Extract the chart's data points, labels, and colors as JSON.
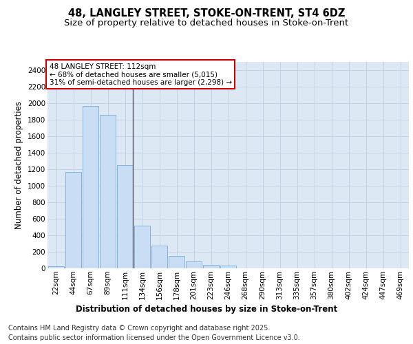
{
  "title_line1": "48, LANGLEY STREET, STOKE-ON-TRENT, ST4 6DZ",
  "title_line2": "Size of property relative to detached houses in Stoke-on-Trent",
  "xlabel": "Distribution of detached houses by size in Stoke-on-Trent",
  "ylabel": "Number of detached properties",
  "categories": [
    "22sqm",
    "44sqm",
    "67sqm",
    "89sqm",
    "111sqm",
    "134sqm",
    "156sqm",
    "178sqm",
    "201sqm",
    "223sqm",
    "246sqm",
    "268sqm",
    "290sqm",
    "313sqm",
    "335sqm",
    "357sqm",
    "380sqm",
    "402sqm",
    "424sqm",
    "447sqm",
    "469sqm"
  ],
  "values": [
    25,
    1170,
    1970,
    1860,
    1250,
    520,
    275,
    150,
    85,
    40,
    35,
    0,
    0,
    0,
    0,
    0,
    0,
    0,
    0,
    0,
    0
  ],
  "bar_color": "#c9ddf5",
  "bar_edge_color": "#7aadd6",
  "vline_index": 4,
  "vline_color": "#555566",
  "annotation_text": "48 LANGLEY STREET: 112sqm\n← 68% of detached houses are smaller (5,015)\n31% of semi-detached houses are larger (2,298) →",
  "annotation_box_facecolor": "#ffffff",
  "annotation_box_edgecolor": "#cc0000",
  "ylim": [
    0,
    2500
  ],
  "yticks": [
    0,
    200,
    400,
    600,
    800,
    1000,
    1200,
    1400,
    1600,
    1800,
    2000,
    2200,
    2400
  ],
  "grid_color": "#c0d0e0",
  "fig_bg_color": "#ffffff",
  "plot_bg_color": "#dde8f5",
  "footer_line1": "Contains HM Land Registry data © Crown copyright and database right 2025.",
  "footer_line2": "Contains public sector information licensed under the Open Government Licence v3.0.",
  "title_fontsize": 10.5,
  "subtitle_fontsize": 9.5,
  "axis_label_fontsize": 8.5,
  "tick_fontsize": 7.5,
  "annot_fontsize": 7.5,
  "footer_fontsize": 7.0
}
